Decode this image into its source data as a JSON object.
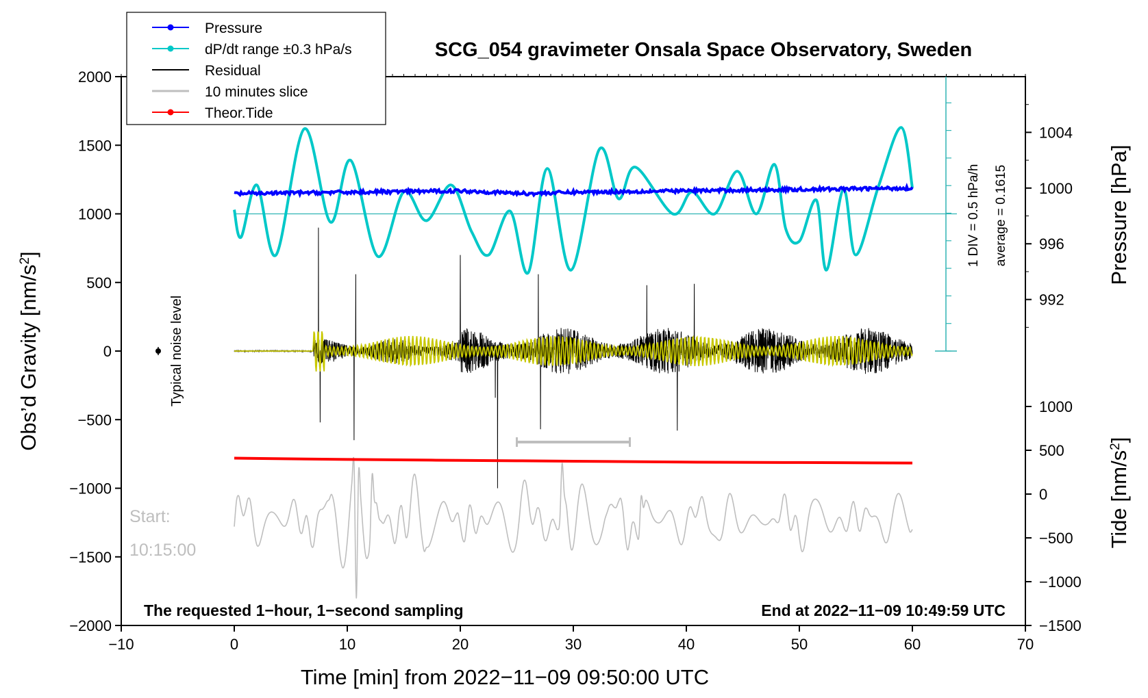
{
  "chart_data": {
    "type": "line",
    "title": "SCG_054 gravimeter Onsala Space Observatory, Sweden",
    "xlabel": "Time [min] from 2022−11−09 09:50:00 UTC",
    "ylabel_left_text": "Obs’d Gravity [nm/s",
    "ylabel_left_sup": "2",
    "ylabel_left_close": "]",
    "ylabel_pressure": "Pressure [hPa]",
    "ylabel_tide_text": "Tide [nm/s",
    "ylabel_tide_sup": "2",
    "ylabel_tide_close": "]",
    "xlim": [
      -10,
      70
    ],
    "ylim": [
      -2000,
      2000
    ],
    "x_ticks": [
      -10,
      0,
      10,
      20,
      30,
      40,
      50,
      60,
      70
    ],
    "x_tick_labels": [
      "−10",
      "0",
      "10",
      "20",
      "30",
      "40",
      "50",
      "60",
      "70"
    ],
    "y_ticks": [
      2000,
      1500,
      1000,
      500,
      0,
      -500,
      -1000,
      -1500,
      -2000
    ],
    "y_tick_labels": [
      "2000",
      "1500",
      "1000",
      "500",
      "0",
      "−500",
      "−1000",
      "−1500",
      "−2000"
    ],
    "pressure_axis": {
      "range": [
        988.2,
        1008
      ],
      "ticks": [
        1004,
        1000,
        996,
        992
      ],
      "tick_labels": [
        "1004",
        "1000",
        "996",
        "992"
      ]
    },
    "tide_axis": {
      "range": [
        -1500,
        1500
      ],
      "ticks": [
        1000,
        500,
        0,
        -500,
        -1000,
        -1500
      ],
      "tick_labels": [
        "1000",
        "500",
        "0",
        "−500",
        "−1000",
        "−1500"
      ]
    },
    "legend": [
      {
        "label": "Pressure",
        "color": "#0000ff",
        "marker": true
      },
      {
        "label": "dP/dt range ±0.3 hPa/s",
        "color": "#00c8c8",
        "marker": true
      },
      {
        "label": "Residual",
        "color": "#000000",
        "marker": false
      },
      {
        "label": "10 minutes slice",
        "color": "#bebebe",
        "marker": false
      },
      {
        "label": "Theor.Tide",
        "color": "#ff0000",
        "marker": true
      }
    ],
    "legend_position": "top-left",
    "annotations": {
      "div_label": "1 DIV = 0.5 hPa/h",
      "average_label": "average = 0.1615",
      "noise_label": "Typical noise level",
      "start_label": "Start:",
      "start_time": "10:15:00",
      "bottom_left": "The requested 1−hour, 1−second sampling",
      "bottom_right": "End at 2022−11−09 10:49:59 UTC"
    },
    "slice_window_minutes": [
      25,
      35
    ],
    "series": [
      {
        "name": "Pressure",
        "axis": "pressure",
        "color": "#0000ff",
        "x": [
          0,
          10,
          20,
          26,
          30,
          40,
          50,
          60
        ],
        "values": [
          999.6,
          999.7,
          999.8,
          999.6,
          999.7,
          999.8,
          999.9,
          1000.0
        ]
      },
      {
        "name": "dP/dt range ±0.3 hPa/s",
        "axis": "gravity",
        "color": "#00c8c8",
        "x": [
          0,
          0.6,
          2,
          3.7,
          6.2,
          8.5,
          10.3,
          12.7,
          15,
          17,
          19.2,
          21,
          22.5,
          24.4,
          26,
          27.7,
          29.8,
          32.3,
          34,
          35.5,
          38.8,
          40.5,
          42.5,
          44.5,
          46.2,
          47.8,
          48.8,
          50,
          51.5,
          52.4,
          53.9,
          55,
          57,
          59,
          60
        ],
        "values": [
          1030,
          830,
          1210,
          700,
          1620,
          940,
          1390,
          690,
          1160,
          950,
          1210,
          870,
          700,
          1020,
          570,
          1330,
          590,
          1470,
          1110,
          1340,
          1000,
          1160,
          1000,
          1310,
          1000,
          1360,
          890,
          800,
          1100,
          590,
          1180,
          700,
          1200,
          1630,
          1190
        ]
      },
      {
        "name": "Residual",
        "axis": "gravity",
        "color": "#000000",
        "x": [
          0,
          7,
          7.45,
          7.6,
          7.75,
          10.6,
          10.75,
          10.9,
          20,
          23.1,
          23.3,
          26.9,
          27.1,
          36.5,
          39.2,
          40.7,
          59.8,
          60
        ],
        "values": [
          0,
          0,
          900,
          -520,
          120,
          -650,
          560,
          20,
          700,
          -340,
          -1000,
          560,
          -570,
          480,
          -580,
          490,
          300,
          -50
        ]
      },
      {
        "name": "Fitted residual",
        "axis": "gravity",
        "color": "#c8c800",
        "x": [
          0,
          7,
          7.5,
          30,
          60
        ],
        "values": [
          0,
          0,
          160,
          110,
          150
        ]
      },
      {
        "name": "10 minutes slice",
        "axis": "gravity",
        "color": "#bebebe",
        "x": [
          0,
          2.3,
          3.3,
          9.3,
          10.8,
          12.2,
          20,
          26.5,
          29,
          36,
          41,
          52.5,
          60
        ],
        "values": [
          -1280,
          -1550,
          -1000,
          -690,
          -1800,
          -900,
          -1270,
          -1230,
          -820,
          -1060,
          -1170,
          -1190,
          -1300
        ]
      },
      {
        "name": "Theor.Tide",
        "axis": "tide",
        "color": "#ff0000",
        "x": [
          0,
          10,
          20,
          30,
          40,
          50,
          60
        ],
        "values": [
          410,
          395,
          385,
          375,
          365,
          360,
          355
        ]
      }
    ]
  }
}
